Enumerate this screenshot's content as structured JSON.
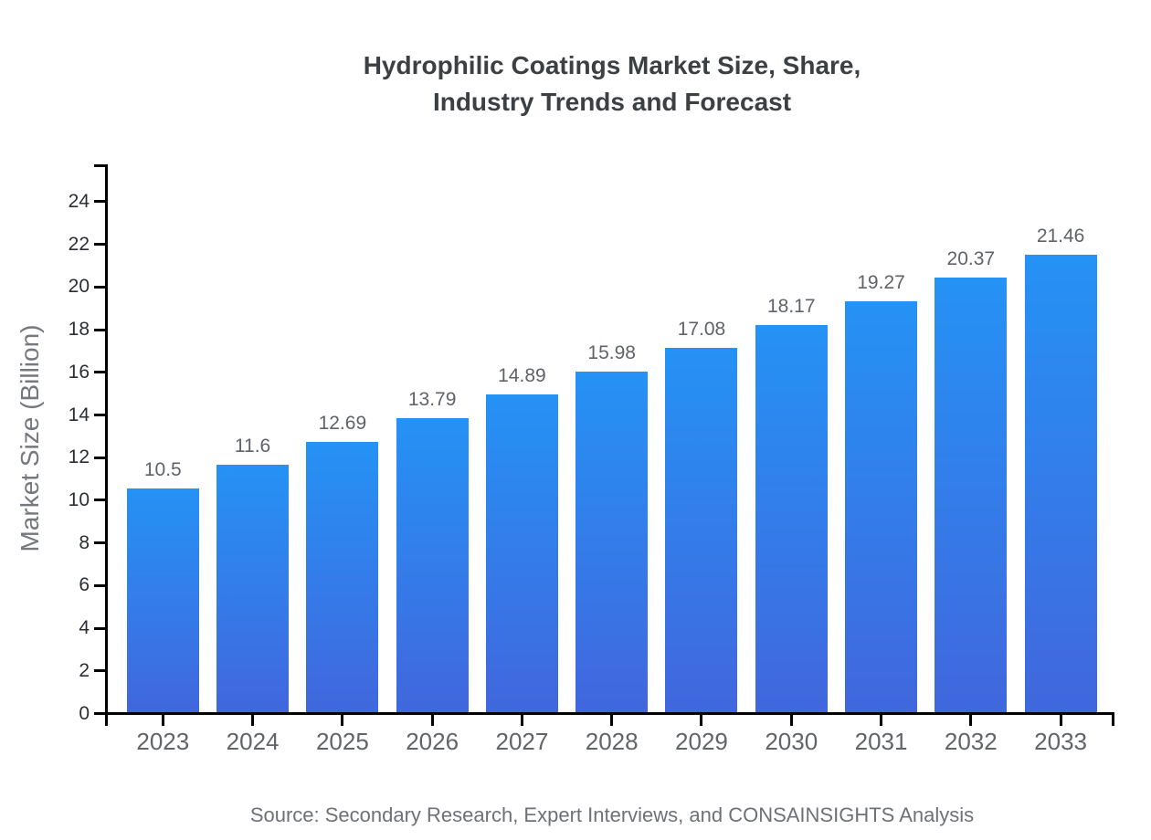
{
  "title": {
    "line1": "Hydrophilic Coatings Market Size, Share,",
    "line2": "Industry Trends and Forecast"
  },
  "source_note": "Source: Secondary Research, Expert Interviews, and CONSAINSIGHTS Analysis",
  "chart_data": {
    "type": "bar",
    "title": "Hydrophilic Coatings Market Size, Share, Industry Trends and Forecast",
    "xlabel": "",
    "ylabel": "Market Size (Billion)",
    "categories": [
      "2023",
      "2024",
      "2025",
      "2026",
      "2027",
      "2028",
      "2029",
      "2030",
      "2031",
      "2032",
      "2033"
    ],
    "values": [
      10.5,
      11.6,
      12.69,
      13.79,
      14.89,
      15.98,
      17.08,
      18.17,
      19.27,
      20.37,
      21.46
    ],
    "data_labels": [
      "10.5",
      "11.6",
      "12.69",
      "13.79",
      "14.89",
      "15.98",
      "17.08",
      "18.17",
      "19.27",
      "20.37",
      "21.46"
    ],
    "yticks": [
      0,
      2,
      4,
      6,
      8,
      10,
      12,
      14,
      16,
      18,
      20,
      22,
      24
    ],
    "ylim": [
      0,
      25.8
    ],
    "grid": false,
    "legend": "none",
    "colors": {
      "bar_gradient_top": "#2592f5",
      "bar_gradient_bottom": "#4167dd",
      "axis": "#000000",
      "title_text": "#3c4043",
      "value_label_text": "#5f6368",
      "x_tick_text": "#616468",
      "y_tick_text": "#2b2e33",
      "y_axis_title_text": "#75787c",
      "source_text": "#6e7276"
    }
  }
}
